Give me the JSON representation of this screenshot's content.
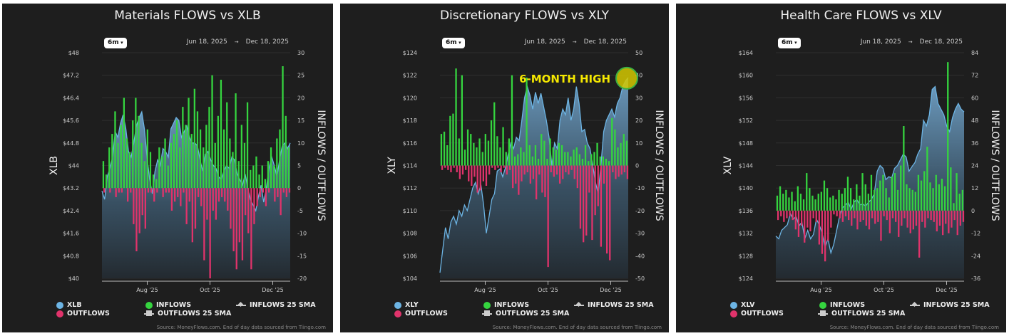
{
  "shared": {
    "range_button": "6m",
    "range_start": "Jun 18, 2025",
    "range_arrow": "→",
    "range_end": "Dec 18, 2025",
    "right_axis_label": "INFLOWS / OUTFLOWS",
    "legend_inflows": "INFLOWS",
    "legend_outflows": "OUTFLOWS",
    "legend_inflows_sma": "INFLOWS 25 SMA",
    "legend_outflows_sma": "OUTFLOWS 25 SMA",
    "source": "Source: MoneyFlows.com. End of day data sourced from Tiingo.com",
    "colors": {
      "price": "#6cb4e4",
      "inflows": "#35d43f",
      "outflows": "#e0336b",
      "background": "#1e1e1e",
      "annotation": "#f5e800"
    }
  },
  "chart_data": [
    {
      "type": "bar",
      "title": "Materials FLOWS vs XLB",
      "ticker": "XLB",
      "ylabel_left": "XLB",
      "ylabel_right": "INFLOWS / OUTFLOWS",
      "x_range": [
        "2025-06-18",
        "2025-12-18"
      ],
      "x_ticks": [
        {
          "label": "Aug '25",
          "date": "2025-08-01"
        },
        {
          "label": "Oct '25",
          "date": "2025-10-01"
        },
        {
          "label": "Dec '25",
          "date": "2025-12-01"
        }
      ],
      "ylim_left": [
        40,
        48
      ],
      "yticks_left": [
        "$40",
        "$40.8",
        "$41.6",
        "$42.4",
        "$43.2",
        "$44",
        "$44.8",
        "$45.6",
        "$46.4",
        "$47.2",
        "$48"
      ],
      "ylim_right": [
        -20,
        30
      ],
      "yticks_right": [
        "-20",
        "-15",
        "-10",
        "-5",
        "0",
        "5",
        "10",
        "15",
        "20",
        "25",
        "30"
      ],
      "price": [
        43.1,
        42.8,
        43.6,
        43.9,
        44.3,
        45.2,
        45.0,
        45.5,
        45.8,
        45.3,
        44.5,
        44.3,
        44.8,
        45.4,
        45.7,
        45.9,
        45.3,
        44.3,
        43.5,
        43.0,
        43.8,
        44.2,
        44.0,
        44.6,
        44.5,
        44.3,
        45.3,
        45.5,
        45.7,
        45.6,
        45.0,
        45.2,
        45.4,
        45.0,
        44.8,
        44.8,
        44.7,
        44.2,
        43.8,
        44.4,
        44.5,
        44.2,
        44.0,
        43.9,
        43.6,
        43.5,
        43.8,
        44.0,
        43.9,
        44.3,
        44.2,
        43.7,
        43.5,
        43.3,
        43.7,
        43.2,
        42.8,
        42.6,
        42.4,
        42.9,
        43.3,
        42.7,
        43.2,
        43.9,
        44.3,
        44.0,
        43.6,
        44.2,
        44.7,
        44.8,
        44.6,
        44.8
      ],
      "inflows": [
        6,
        3,
        9,
        12,
        17,
        10,
        14,
        20,
        11,
        8,
        15,
        20,
        16,
        10,
        6,
        13,
        8,
        3,
        2,
        9,
        7,
        11,
        5,
        10,
        12,
        15,
        9,
        18,
        14,
        20,
        12,
        22,
        17,
        13,
        9,
        14,
        18,
        25,
        10,
        16,
        24,
        13,
        19,
        11,
        8,
        21,
        6,
        14,
        10,
        19,
        4,
        5,
        7,
        3,
        5,
        2,
        6,
        9,
        5,
        11,
        13,
        27,
        16,
        9
      ],
      "outflows": [
        -1,
        0,
        -1,
        0,
        -2,
        -1,
        -1,
        0,
        -3,
        -1,
        -8,
        -14,
        -10,
        -6,
        -9,
        -1,
        -1,
        -3,
        -1,
        0,
        -2,
        -1,
        -1,
        -5,
        -3,
        -2,
        -4,
        -1,
        -8,
        -3,
        -12,
        -9,
        -2,
        -4,
        -16,
        -7,
        -20,
        -5,
        -7,
        -3,
        -2,
        -3,
        -5,
        -9,
        -14,
        -18,
        -12,
        -16,
        -6,
        -10,
        -18,
        -8,
        -4,
        -2,
        -1,
        -4,
        -1,
        0,
        -3,
        -2,
        -6,
        -1,
        -2,
        -1
      ]
    },
    {
      "type": "bar",
      "title": "Discretionary FLOWS vs XLY",
      "ticker": "XLY",
      "ylabel_left": "XLY",
      "ylabel_right": "INFLOWS / OUTFLOWS",
      "x_range": [
        "2025-06-18",
        "2025-12-18"
      ],
      "x_ticks": [
        {
          "label": "Aug '25",
          "date": "2025-08-01"
        },
        {
          "label": "Oct '25",
          "date": "2025-10-01"
        },
        {
          "label": "Dec '25",
          "date": "2025-12-01"
        }
      ],
      "ylim_left": [
        104,
        124
      ],
      "yticks_left": [
        "$104",
        "$106",
        "$108",
        "$110",
        "$112",
        "$114",
        "$116",
        "$118",
        "$120",
        "$122",
        "$124"
      ],
      "ylim_right": [
        -50,
        50
      ],
      "yticks_right": [
        "-50",
        "-40",
        "-30",
        "-20",
        "-10",
        "0",
        "10",
        "20",
        "30",
        "40",
        "50"
      ],
      "annotation": "6-MONTH HIGH",
      "price": [
        104.5,
        106.5,
        108.5,
        107.5,
        109,
        109.5,
        108.8,
        110,
        109.5,
        110.5,
        110,
        111,
        112,
        112.5,
        111.5,
        112.3,
        110.5,
        108,
        109.5,
        111,
        111.5,
        113.5,
        113.7,
        113,
        113.8,
        115,
        116,
        115.5,
        116.5,
        116.2,
        118,
        120,
        121,
        120.2,
        119,
        120.5,
        119.5,
        120.4,
        119.2,
        118,
        116.5,
        114,
        116,
        115.5,
        118,
        119,
        118.5,
        120,
        118,
        119,
        121,
        119.5,
        117,
        117.2,
        116,
        115.5,
        114,
        112.5,
        111.5,
        114,
        117,
        118,
        118.5,
        119,
        118.3,
        119.5,
        120,
        121,
        121.5,
        121.8
      ],
      "inflows": [
        14,
        15,
        9,
        22,
        23,
        43,
        12,
        40,
        7,
        16,
        14,
        10,
        8,
        12,
        6,
        14,
        11,
        20,
        28,
        13,
        8,
        17,
        6,
        12,
        40,
        4,
        5,
        8,
        6,
        39,
        9,
        4,
        9,
        3,
        14,
        11,
        3,
        12,
        8,
        7,
        10,
        9,
        6,
        6,
        4,
        7,
        8,
        5,
        3,
        9,
        2,
        5,
        6,
        10,
        4,
        4,
        3,
        2,
        21,
        16,
        8,
        10,
        14,
        11
      ],
      "outflows": [
        -2,
        -1,
        -2,
        -3,
        -1,
        -3,
        -6,
        -4,
        -2,
        -7,
        -9,
        -5,
        -12,
        -11,
        -7,
        -9,
        -4,
        -1,
        -2,
        -1,
        -3,
        -1,
        -4,
        -2,
        -10,
        -8,
        -13,
        -7,
        -4,
        -3,
        -8,
        -6,
        -15,
        -4,
        -12,
        -14,
        -45,
        -3,
        -5,
        -4,
        -8,
        -6,
        -3,
        -4,
        -2,
        -6,
        -10,
        -28,
        -34,
        -31,
        -12,
        -33,
        -22,
        -18,
        -36,
        -8,
        -39,
        -42,
        -3,
        -6,
        -5,
        -4,
        -3,
        -6
      ]
    },
    {
      "type": "bar",
      "title": "Health Care FLOWS vs XLV",
      "ticker": "XLV",
      "ylabel_left": "XLV",
      "ylabel_right": "INFLOWS / OUTFLOWS",
      "x_range": [
        "2025-06-18",
        "2025-12-18"
      ],
      "x_ticks": [
        {
          "label": "Aug '25",
          "date": "2025-08-01"
        },
        {
          "label": "Oct '25",
          "date": "2025-10-01"
        },
        {
          "label": "Dec '25",
          "date": "2025-12-01"
        }
      ],
      "ylim_left": [
        124,
        164
      ],
      "yticks_left": [
        "$124",
        "$128",
        "$132",
        "$136",
        "$140",
        "$144",
        "$148",
        "$152",
        "$156",
        "$160",
        "$164"
      ],
      "ylim_right": [
        -36,
        84
      ],
      "yticks_right": [
        "-36",
        "-24",
        "-12",
        "0",
        "12",
        "24",
        "36",
        "48",
        "60",
        "72",
        "84"
      ],
      "price": [
        131.5,
        131,
        132.5,
        133,
        133.5,
        135.5,
        134.5,
        135,
        133.3,
        134,
        131,
        132.5,
        131,
        131.8,
        134.5,
        133.5,
        132,
        129.5,
        131,
        128.5,
        130,
        132.5,
        135,
        136.5,
        137,
        137.5,
        136.2,
        137.5,
        138,
        137,
        137.2,
        136.8,
        137.5,
        138,
        139,
        143,
        144,
        143.5,
        141.5,
        142,
        141.8,
        143.5,
        144,
        145,
        146,
        145.5,
        143,
        143.8,
        144.5,
        146,
        147,
        152,
        151,
        153,
        157.5,
        158,
        155,
        154,
        153,
        151,
        150,
        152.5,
        154,
        155,
        154,
        153.5
      ],
      "inflows": [
        8,
        13,
        9,
        11,
        7,
        10,
        5,
        13,
        9,
        6,
        20,
        12,
        8,
        6,
        9,
        10,
        16,
        12,
        7,
        8,
        6,
        11,
        9,
        12,
        18,
        12,
        6,
        14,
        8,
        20,
        14,
        9,
        19,
        11,
        12,
        16,
        19,
        12,
        7,
        18,
        20,
        11,
        24,
        45,
        14,
        12,
        11,
        10,
        19,
        16,
        21,
        34,
        15,
        12,
        19,
        14,
        17,
        13,
        79,
        23,
        4,
        20,
        9,
        11
      ],
      "outflows": [
        -5,
        -3,
        -6,
        -4,
        -3,
        -5,
        -10,
        -14,
        -8,
        -17,
        -9,
        -11,
        -4,
        -6,
        -18,
        -23,
        -27,
        -16,
        -9,
        -2,
        -3,
        -4,
        -6,
        -3,
        -5,
        -8,
        -4,
        -10,
        -6,
        -5,
        -8,
        -10,
        -4,
        -7,
        -6,
        -16,
        -3,
        -5,
        -12,
        -4,
        -6,
        -14,
        -8,
        -4,
        -9,
        -12,
        -10,
        -8,
        -25,
        -6,
        -9,
        -4,
        -5,
        -6,
        -11,
        -8,
        -13,
        -7,
        -12,
        -9,
        -5,
        -13,
        -8,
        -6
      ]
    }
  ]
}
